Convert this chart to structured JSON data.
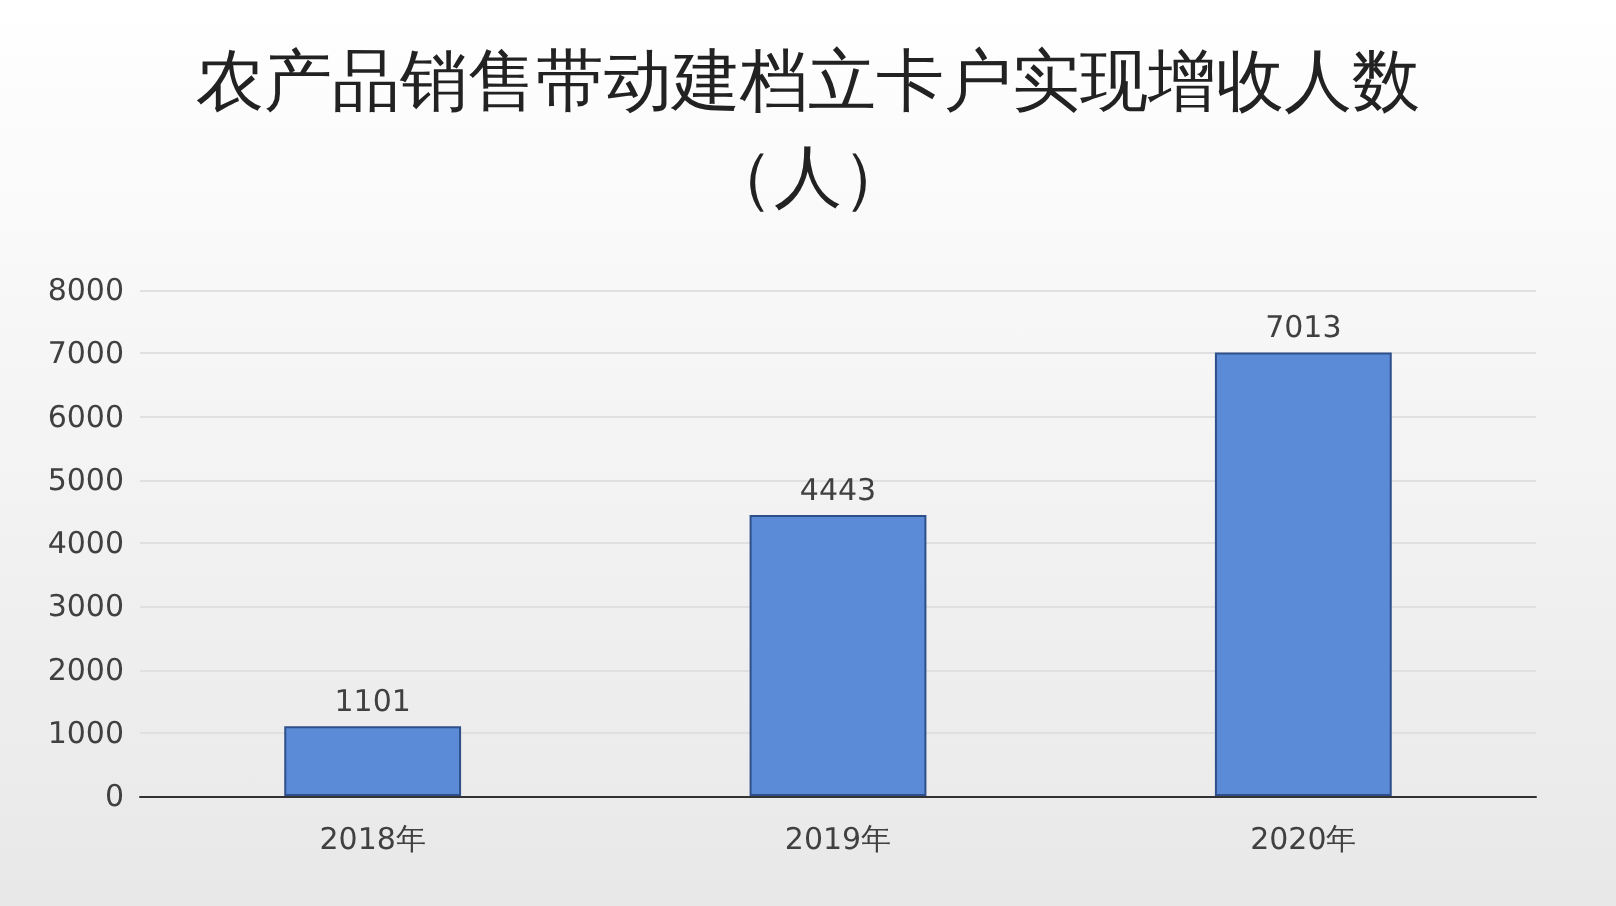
{
  "chart_data": {
    "type": "bar",
    "title": "农产品销售带动建档立卡户实现增收人数（人）",
    "categories": [
      "2018年",
      "2019年",
      "2020年"
    ],
    "values": [
      1101,
      4443,
      7013
    ],
    "color": "#5b8ad6",
    "ylim": [
      0,
      8000
    ],
    "yticks": [
      0,
      1000,
      2000,
      3000,
      4000,
      5000,
      6000,
      7000,
      8000
    ],
    "grid": "y",
    "data_labels": true
  }
}
